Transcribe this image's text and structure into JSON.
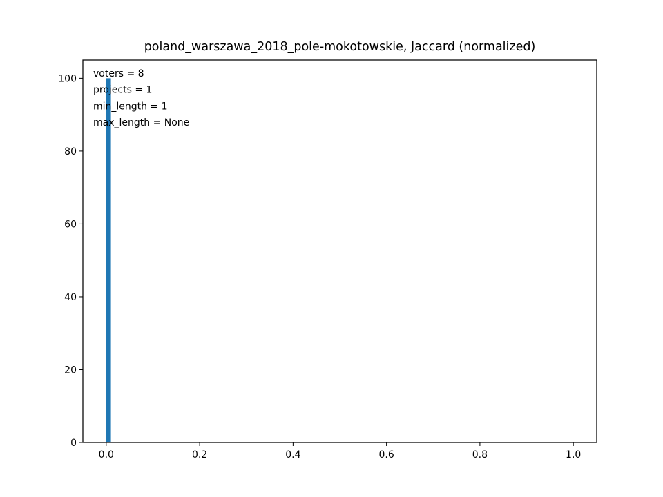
{
  "chart_data": {
    "type": "bar",
    "title": "poland_warszawa_2018_pole-mokotowskie, Jaccard (normalized)",
    "xlabel": "",
    "ylabel": "",
    "xlim": [
      -0.05,
      1.05
    ],
    "ylim": [
      0,
      105
    ],
    "x_ticks": [
      0.0,
      0.2,
      0.4,
      0.6,
      0.8,
      1.0
    ],
    "x_tick_labels": [
      "0.0",
      "0.2",
      "0.4",
      "0.6",
      "0.8",
      "1.0"
    ],
    "y_ticks": [
      0,
      20,
      40,
      60,
      80,
      100
    ],
    "y_tick_labels": [
      "0",
      "20",
      "40",
      "60",
      "80",
      "100"
    ],
    "bins": [
      {
        "x_start": 0.0,
        "x_end": 0.01,
        "value": 100
      }
    ],
    "bar_color": "#1f77b4",
    "grid": false,
    "annotations": [
      "voters = 8",
      "projects = 1",
      "min_length = 1",
      "max_length = None"
    ]
  }
}
